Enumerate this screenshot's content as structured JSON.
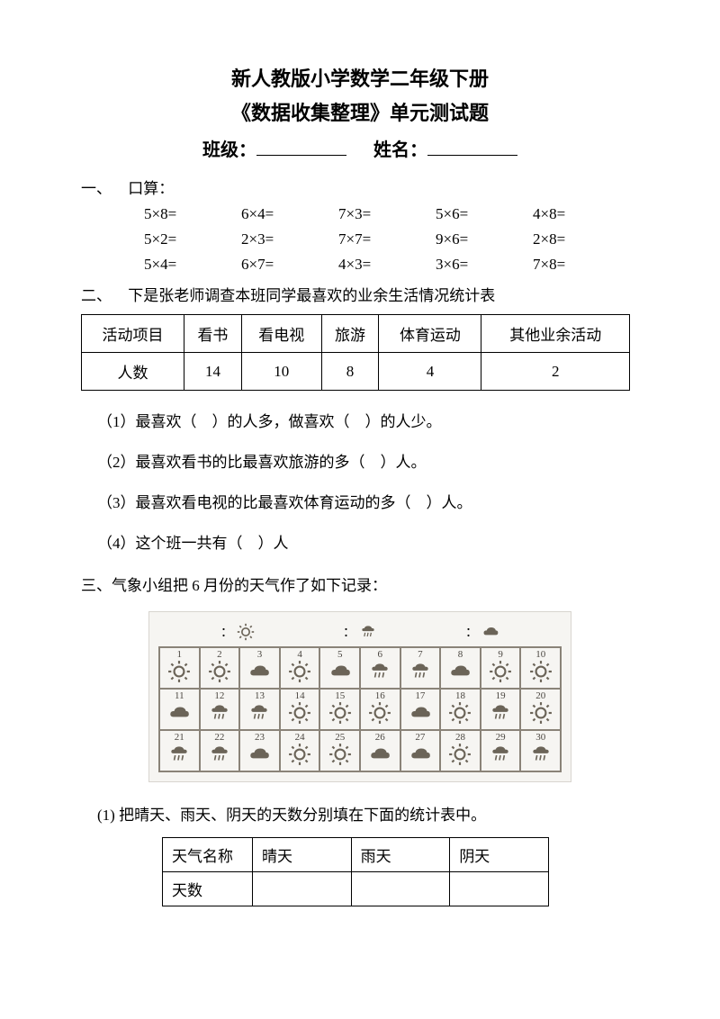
{
  "title": {
    "line1": "新人教版小学数学二年级下册",
    "line2": "《数据收集整理》单元测试题",
    "class_label": "班级：",
    "name_label": "姓名："
  },
  "section1": {
    "head": "一、",
    "title": "口算：",
    "rows": [
      [
        "5×8=",
        "6×4=",
        "7×3=",
        "5×6=",
        "4×8="
      ],
      [
        "5×2=",
        "2×3=",
        "7×7=",
        "9×6=",
        "2×8="
      ],
      [
        "5×4=",
        "6×7=",
        "4×3=",
        "3×6=",
        "7×8="
      ]
    ]
  },
  "section2": {
    "head": "二、",
    "title": "下是张老师调查本班同学最喜欢的业余生活情况统计表",
    "table": {
      "headers": [
        "活动项目",
        "看书",
        "看电视",
        "旅游",
        "体育运动",
        "其他业余活动"
      ],
      "row_label": "人数",
      "values": [
        14,
        10,
        8,
        4,
        2
      ]
    },
    "q1": "（1）最喜欢（　）的人多，做喜欢（　）的人少。",
    "q2": "（2）最喜欢看书的比最喜欢旅游的多（　）人。",
    "q3": "（3）最喜欢看电视的比最喜欢体育运动的多（　）人。",
    "q4": "（4）这个班一共有（　）人"
  },
  "section3": {
    "head": "三、气象小组把 6 月份的天气作了如下记录：",
    "legend": {
      "sunny": "：",
      "rainy": "：",
      "cloudy": "："
    },
    "days": [
      {
        "n": 1,
        "w": "sunny"
      },
      {
        "n": 2,
        "w": "sunny"
      },
      {
        "n": 3,
        "w": "cloudy"
      },
      {
        "n": 4,
        "w": "sunny"
      },
      {
        "n": 5,
        "w": "cloudy"
      },
      {
        "n": 6,
        "w": "rainy"
      },
      {
        "n": 7,
        "w": "rainy"
      },
      {
        "n": 8,
        "w": "cloudy"
      },
      {
        "n": 9,
        "w": "sunny"
      },
      {
        "n": 10,
        "w": "sunny"
      },
      {
        "n": 11,
        "w": "cloudy"
      },
      {
        "n": 12,
        "w": "rainy"
      },
      {
        "n": 13,
        "w": "rainy"
      },
      {
        "n": 14,
        "w": "sunny"
      },
      {
        "n": 15,
        "w": "sunny"
      },
      {
        "n": 16,
        "w": "sunny"
      },
      {
        "n": 17,
        "w": "cloudy"
      },
      {
        "n": 18,
        "w": "sunny"
      },
      {
        "n": 19,
        "w": "rainy"
      },
      {
        "n": 20,
        "w": "sunny"
      },
      {
        "n": 21,
        "w": "rainy"
      },
      {
        "n": 22,
        "w": "rainy"
      },
      {
        "n": 23,
        "w": "cloudy"
      },
      {
        "n": 24,
        "w": "sunny"
      },
      {
        "n": 25,
        "w": "sunny"
      },
      {
        "n": 26,
        "w": "cloudy"
      },
      {
        "n": 27,
        "w": "cloudy"
      },
      {
        "n": 28,
        "w": "sunny"
      },
      {
        "n": 29,
        "w": "rainy"
      },
      {
        "n": 30,
        "w": "rainy"
      }
    ],
    "q1": "(1) 把晴天、雨天、阴天的天数分别填在下面的统计表中。",
    "stats": {
      "row1": [
        "天气名称",
        "晴天",
        "雨天",
        "阴天"
      ],
      "row2": [
        "天数",
        "",
        "",
        ""
      ]
    }
  }
}
